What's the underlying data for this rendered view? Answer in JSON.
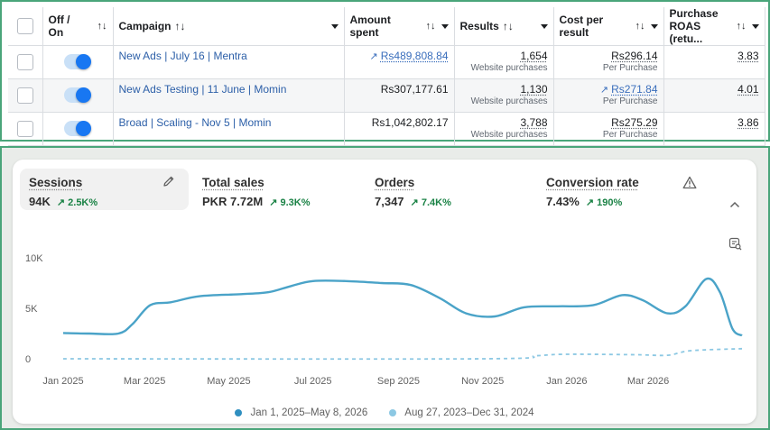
{
  "ads_table": {
    "headers": {
      "off_on": "Off / On",
      "campaign": "Campaign",
      "amount_spent": "Amount spent",
      "results": "Results",
      "cost_per_result": "Cost per result",
      "purchase_roas": "Purchase ROAS (retu..."
    },
    "sort_glyph": "↑↓",
    "rows": [
      {
        "campaign": "New Ads | July 16 | Mentra",
        "on": true,
        "amount_spent": "Rs489,808.84",
        "amount_trend": true,
        "results": "1,654",
        "results_sub": "Website purchases",
        "cost": "Rs296.14",
        "cost_trend": false,
        "cost_sub": "Per Purchase",
        "roas": "3.83"
      },
      {
        "campaign": "New Ads Testing | 11 June | Momin",
        "on": true,
        "amount_spent": "Rs307,177.61",
        "amount_trend": false,
        "results": "1,130",
        "results_sub": "Website purchases",
        "cost": "Rs271.84",
        "cost_trend": true,
        "cost_sub": "Per Purchase",
        "roas": "4.01"
      },
      {
        "campaign": "Broad | Scaling - Nov 5 | Momin",
        "on": true,
        "amount_spent": "Rs1,042,802.17",
        "amount_trend": false,
        "results": "3,788",
        "results_sub": "Website purchases",
        "cost": "Rs275.29",
        "cost_trend": false,
        "cost_sub": "Per Purchase",
        "roas": "3.86"
      }
    ]
  },
  "analytics": {
    "metrics": [
      {
        "label": "Sessions",
        "value": "94K",
        "delta": "2.5K%"
      },
      {
        "label": "Total sales",
        "value": "PKR 7.72M",
        "delta": "9.3K%"
      },
      {
        "label": "Orders",
        "value": "7,347",
        "delta": "7.4K%"
      },
      {
        "label": "Conversion rate",
        "value": "7.43%",
        "delta": "190%"
      }
    ],
    "icons": {
      "edit": "pencil-icon",
      "warning": "warning-triangle-icon",
      "collapse": "chevron-up-icon",
      "explore": "chart-search-icon"
    },
    "colors": {
      "current": "#4aa3c8",
      "previous": "#8cc8e3",
      "delta_up": "#1a8245"
    },
    "legend": {
      "current": "Jan 1, 2025–May 8, 2026",
      "previous": "Aug 27, 2023–Dec 31, 2024"
    }
  },
  "chart_data": {
    "type": "line",
    "x_ticks": [
      "Jan 2025",
      "Mar 2025",
      "May 2025",
      "Jul 2025",
      "Sep 2025",
      "Nov 2025",
      "Jan 2026",
      "Mar 2026"
    ],
    "y_ticks": [
      "10K",
      "5K",
      "0"
    ],
    "ylim": [
      0,
      10000
    ],
    "x_start": "2025-01-01",
    "x_end": "2026-05-08",
    "series": [
      {
        "name": "Jan 1, 2025–May 8, 2026",
        "style": "solid",
        "points": [
          [
            "2025-01-01",
            2550
          ],
          [
            "2025-01-20",
            2500
          ],
          [
            "2025-02-10",
            2500
          ],
          [
            "2025-02-20",
            3400
          ],
          [
            "2025-03-05",
            5300
          ],
          [
            "2025-03-20",
            5600
          ],
          [
            "2025-04-10",
            6200
          ],
          [
            "2025-05-10",
            6400
          ],
          [
            "2025-05-30",
            6600
          ],
          [
            "2025-06-15",
            7200
          ],
          [
            "2025-07-01",
            7700
          ],
          [
            "2025-07-25",
            7700
          ],
          [
            "2025-08-20",
            7500
          ],
          [
            "2025-09-10",
            7300
          ],
          [
            "2025-10-01",
            6000
          ],
          [
            "2025-10-20",
            4500
          ],
          [
            "2025-11-10",
            4200
          ],
          [
            "2025-12-01",
            5100
          ],
          [
            "2025-12-25",
            5200
          ],
          [
            "2026-01-20",
            5300
          ],
          [
            "2026-02-10",
            6300
          ],
          [
            "2026-02-25",
            5800
          ],
          [
            "2026-03-15",
            4500
          ],
          [
            "2026-03-28",
            5200
          ],
          [
            "2026-04-12",
            7900
          ],
          [
            "2026-04-22",
            6600
          ],
          [
            "2026-05-01",
            3000
          ],
          [
            "2026-05-08",
            2300
          ]
        ]
      },
      {
        "name": "Aug 27, 2023–Dec 31, 2024",
        "style": "dashed",
        "points": [
          [
            "2025-01-01",
            0
          ],
          [
            "2025-11-01",
            0
          ],
          [
            "2025-12-10",
            300
          ],
          [
            "2026-01-01",
            450
          ],
          [
            "2026-02-20",
            400
          ],
          [
            "2026-03-15",
            350
          ],
          [
            "2026-04-01",
            800
          ],
          [
            "2026-05-08",
            1000
          ]
        ]
      }
    ]
  }
}
